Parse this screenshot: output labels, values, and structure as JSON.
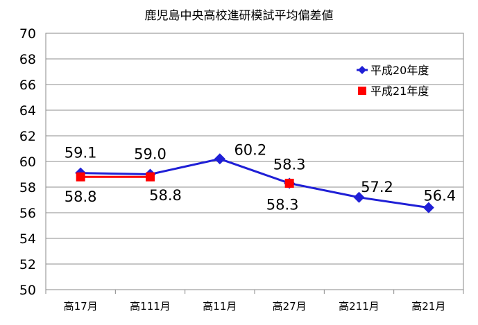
{
  "chart_data": {
    "type": "line",
    "title": "鹿児島中央高校進研模試平均偏差値",
    "xlabel": "",
    "ylabel": "",
    "categories": [
      "高17月",
      "高111月",
      "高11月",
      "高27月",
      "高211月",
      "高21月"
    ],
    "ylim": [
      50,
      70
    ],
    "yticks": [
      "50",
      "52",
      "54",
      "56",
      "58",
      "60",
      "62",
      "64",
      "66",
      "68",
      "70"
    ],
    "grid": true,
    "legend_position": "top-right",
    "series": [
      {
        "name": "平成20年度",
        "values": [
          59.1,
          59.0,
          60.2,
          58.3,
          57.2,
          56.4
        ],
        "labels": [
          "59.1",
          "59.0",
          "60.2",
          "58.3",
          "57.2",
          "56.4"
        ],
        "color": "#1f1fd6",
        "marker": "diamond"
      },
      {
        "name": "平成21年度",
        "values": [
          58.8,
          58.8,
          null,
          58.3,
          null,
          null
        ],
        "labels": [
          "58.8",
          "58.8",
          "",
          "58.3",
          "",
          ""
        ],
        "color": "#ff0000",
        "marker": "square"
      }
    ]
  }
}
